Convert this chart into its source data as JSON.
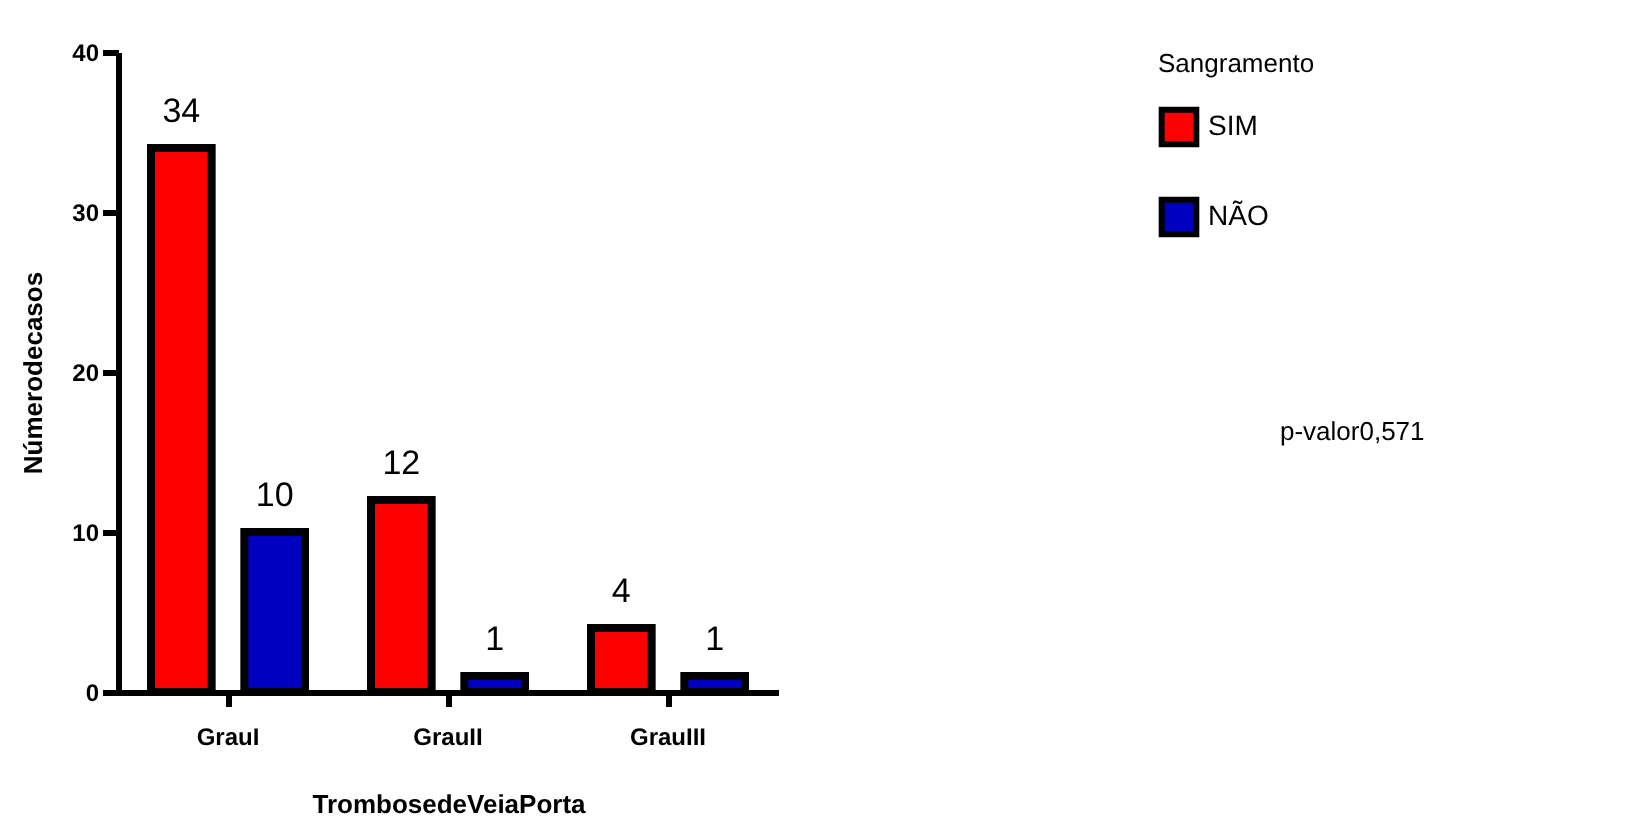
{
  "chart_data": {
    "type": "bar",
    "xlabel": "TrombosedeVeiaPorta",
    "ylabel": "Númerodecasos",
    "legend_title": "Sangramento",
    "categories": [
      "GrauI",
      "GrauII",
      "GrauIII"
    ],
    "series": [
      {
        "name": "SIM",
        "color": "#ff0000",
        "values": [
          34,
          12,
          4
        ]
      },
      {
        "name": "NÃO",
        "color": "#0000c0",
        "values": [
          10,
          1,
          1
        ]
      }
    ],
    "ylim": [
      0,
      40
    ],
    "yticks": [
      0,
      10,
      20,
      30,
      40
    ],
    "grid": false,
    "legend": "top right",
    "data_labels": true,
    "annotations": [
      "p-valor0,571"
    ]
  }
}
